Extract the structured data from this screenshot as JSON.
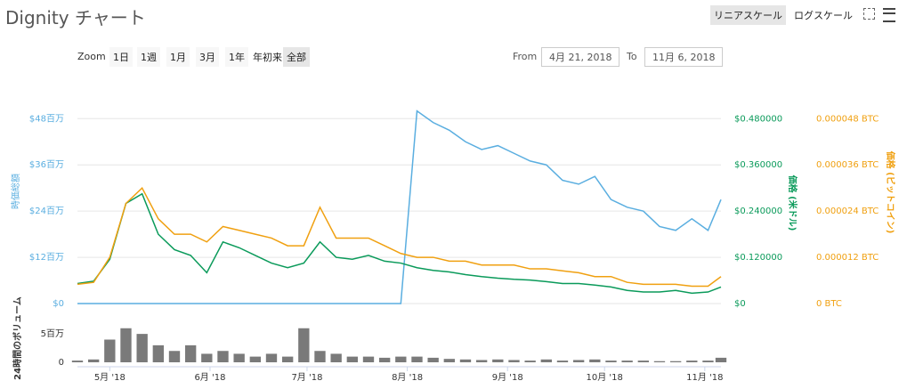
{
  "page": {
    "title": "Dignity チャート",
    "scale_buttons": [
      "リニアスケール",
      "ログスケール"
    ],
    "zoom_label": "Zoom",
    "zoom_buttons": [
      "1日",
      "1週",
      "1月",
      "3月",
      "1年",
      "年初来",
      "全部"
    ],
    "from_label": "From",
    "from_value": "4月 21, 2018",
    "to_label": "To",
    "to_value": "11月 6, 2018"
  },
  "chart_data": [
    {
      "type": "line",
      "x": [
        "2018-04-21",
        "2018-04-26",
        "2018-05-01",
        "2018-05-06",
        "2018-05-11",
        "2018-05-16",
        "2018-05-21",
        "2018-05-26",
        "2018-05-31",
        "2018-06-05",
        "2018-06-10",
        "2018-06-15",
        "2018-06-20",
        "2018-06-25",
        "2018-06-30",
        "2018-07-05",
        "2018-07-10",
        "2018-07-15",
        "2018-07-20",
        "2018-07-25",
        "2018-07-30",
        "2018-08-04",
        "2018-08-09",
        "2018-08-14",
        "2018-08-19",
        "2018-08-24",
        "2018-08-29",
        "2018-09-03",
        "2018-09-08",
        "2018-09-13",
        "2018-09-18",
        "2018-09-23",
        "2018-09-28",
        "2018-10-03",
        "2018-10-08",
        "2018-10-13",
        "2018-10-18",
        "2018-10-23",
        "2018-10-28",
        "2018-11-02",
        "2018-11-06"
      ],
      "xlim": [
        "2018-04-21",
        "2018-11-06"
      ],
      "ylabel": "時価総額",
      "y2label": "価格 (米ドル)",
      "y3label": "価格 (ビットコイン)",
      "ylim": [
        0,
        52000000
      ],
      "yticks": [
        {
          "value": 0,
          "label": "$0"
        },
        {
          "value": 12000000,
          "label": "$12百万"
        },
        {
          "value": 24000000,
          "label": "$24百万"
        },
        {
          "value": 36000000,
          "label": "$36百万"
        },
        {
          "value": 48000000,
          "label": "$48百万"
        }
      ],
      "y2lim": [
        0,
        0.52
      ],
      "y2ticks": [
        {
          "value": 0,
          "label": "$0"
        },
        {
          "value": 0.12,
          "label": "$0.120000"
        },
        {
          "value": 0.24,
          "label": "$0.240000"
        },
        {
          "value": 0.36,
          "label": "$0.360000"
        },
        {
          "value": 0.48,
          "label": "$0.480000"
        }
      ],
      "y3lim": [
        0,
        5.2e-05
      ],
      "y3ticks": [
        {
          "value": 0,
          "label": "0 BTC"
        },
        {
          "value": 1.2e-05,
          "label": "0.000012 BTC"
        },
        {
          "value": 2.4e-05,
          "label": "0.000024 BTC"
        },
        {
          "value": 3.6e-05,
          "label": "0.000036 BTC"
        },
        {
          "value": 4.8e-05,
          "label": "0.000048 BTC"
        }
      ],
      "grid": true,
      "series": [
        {
          "name": "時価総額",
          "color": "#5aaee0",
          "axis": "y",
          "values": [
            0,
            0,
            0,
            0,
            0,
            0,
            0,
            0,
            0,
            0,
            0,
            0,
            0,
            0,
            0,
            0,
            0,
            0,
            0,
            0,
            0,
            50000000,
            47000000,
            45000000,
            42000000,
            40000000,
            41000000,
            39000000,
            37000000,
            36000000,
            32000000,
            31000000,
            33000000,
            27000000,
            25000000,
            24000000,
            20000000,
            19000000,
            22000000,
            19000000,
            27000000
          ]
        },
        {
          "name": "価格 (米ドル)",
          "color": "#0a9a5a",
          "axis": "y2",
          "values": [
            0.052,
            0.058,
            0.115,
            0.26,
            0.285,
            0.18,
            0.14,
            0.125,
            0.08,
            0.16,
            0.145,
            0.125,
            0.105,
            0.093,
            0.105,
            0.16,
            0.12,
            0.115,
            0.125,
            0.11,
            0.105,
            0.093,
            0.086,
            0.082,
            0.075,
            0.07,
            0.066,
            0.063,
            0.061,
            0.057,
            0.052,
            0.052,
            0.048,
            0.043,
            0.034,
            0.03,
            0.03,
            0.034,
            0.027,
            0.03,
            0.043
          ]
        },
        {
          "name": "価格 (ビットコイン)",
          "color": "#f0a010",
          "axis": "y3",
          "values": [
            5e-06,
            5.5e-06,
            1.2e-05,
            2.6e-05,
            3e-05,
            2.2e-05,
            1.8e-05,
            1.8e-05,
            1.6e-05,
            2e-05,
            1.9e-05,
            1.8e-05,
            1.7e-05,
            1.5e-05,
            1.5e-05,
            2.5e-05,
            1.7e-05,
            1.7e-05,
            1.7e-05,
            1.5e-05,
            1.3e-05,
            1.2e-05,
            1.2e-05,
            1.1e-05,
            1.1e-05,
            1e-05,
            1e-05,
            1e-05,
            9e-06,
            9e-06,
            8.5e-06,
            8e-06,
            7e-06,
            7e-06,
            5.5e-06,
            5e-06,
            5e-06,
            5e-06,
            4.5e-06,
            4.5e-06,
            7e-06
          ]
        }
      ]
    },
    {
      "type": "bar",
      "x": [
        "2018-04-21",
        "2018-04-26",
        "2018-05-01",
        "2018-05-06",
        "2018-05-11",
        "2018-05-16",
        "2018-05-21",
        "2018-05-26",
        "2018-05-31",
        "2018-06-05",
        "2018-06-10",
        "2018-06-15",
        "2018-06-20",
        "2018-06-25",
        "2018-06-30",
        "2018-07-05",
        "2018-07-10",
        "2018-07-15",
        "2018-07-20",
        "2018-07-25",
        "2018-07-30",
        "2018-08-04",
        "2018-08-09",
        "2018-08-14",
        "2018-08-19",
        "2018-08-24",
        "2018-08-29",
        "2018-09-03",
        "2018-09-08",
        "2018-09-13",
        "2018-09-18",
        "2018-09-23",
        "2018-09-28",
        "2018-10-03",
        "2018-10-08",
        "2018-10-13",
        "2018-10-18",
        "2018-10-23",
        "2018-10-28",
        "2018-11-02",
        "2018-11-06"
      ],
      "xlim": [
        "2018-04-21",
        "2018-11-06"
      ],
      "xticks": [
        {
          "value": "2018-05-01",
          "label": "5月 '18"
        },
        {
          "value": "2018-06-01",
          "label": "6月 '18"
        },
        {
          "value": "2018-07-01",
          "label": "7月 '18"
        },
        {
          "value": "2018-08-01",
          "label": "8月 '18"
        },
        {
          "value": "2018-09-01",
          "label": "9月 '18"
        },
        {
          "value": "2018-10-01",
          "label": "10月 '18"
        },
        {
          "value": "2018-11-01",
          "label": "11月 '18"
        }
      ],
      "ylabel": "24時間のボリューム",
      "ylim": [
        0,
        8000000
      ],
      "yticks": [
        0,
        {
          "value": 5000000,
          "label": "5百万"
        }
      ],
      "color": "#7a7a7a",
      "values": [
        300000,
        500000,
        4000000,
        6000000,
        5000000,
        3000000,
        2000000,
        3000000,
        1500000,
        2000000,
        1500000,
        1000000,
        1500000,
        1000000,
        6000000,
        2000000,
        1500000,
        1000000,
        1000000,
        800000,
        1000000,
        1000000,
        800000,
        600000,
        500000,
        400000,
        500000,
        400000,
        300000,
        500000,
        300000,
        400000,
        500000,
        300000,
        300000,
        300000,
        200000,
        200000,
        300000,
        300000,
        800000
      ]
    }
  ]
}
